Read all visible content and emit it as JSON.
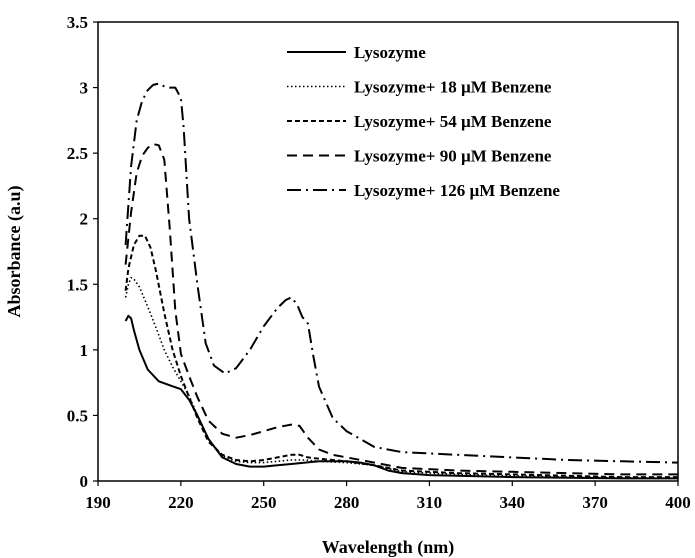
{
  "chart_data": {
    "type": "line",
    "title": "",
    "xlabel": "Wavelength (nm)",
    "ylabel": "Absorbance (a.u)",
    "xlim": [
      190,
      400
    ],
    "ylim": [
      0,
      3.5
    ],
    "x_ticks": [
      190,
      220,
      250,
      280,
      310,
      340,
      370,
      400
    ],
    "y_ticks": [
      0,
      0.5,
      1,
      1.5,
      2,
      2.5,
      3,
      3.5
    ],
    "x_tick_labels": [
      "190",
      "220",
      "250",
      "280",
      "310",
      "340",
      "370",
      "400"
    ],
    "y_tick_labels": [
      "0",
      "0.5",
      "1",
      "1.5",
      "2",
      "2.5",
      "3",
      "3.5"
    ],
    "grid": false,
    "legend_position": "top-right",
    "series": [
      {
        "name": "Lysozyme",
        "dash": "solid",
        "x": [
          200,
          201,
          202,
          203,
          205,
          208,
          212,
          216,
          220,
          223,
          226,
          230,
          235,
          240,
          245,
          250,
          255,
          260,
          265,
          270,
          275,
          280,
          285,
          290,
          295,
          300,
          310,
          320,
          340,
          360,
          380,
          400
        ],
        "y": [
          1.22,
          1.26,
          1.24,
          1.15,
          1.0,
          0.85,
          0.76,
          0.73,
          0.7,
          0.62,
          0.5,
          0.32,
          0.18,
          0.13,
          0.11,
          0.11,
          0.12,
          0.13,
          0.14,
          0.15,
          0.15,
          0.15,
          0.14,
          0.12,
          0.08,
          0.06,
          0.045,
          0.04,
          0.03,
          0.025,
          0.02,
          0.02
        ]
      },
      {
        "name": "Lysozyme+ 18 µM Benzene",
        "dash": "dotted",
        "x": [
          200,
          201,
          202,
          203,
          205,
          208,
          211,
          214,
          217,
          220,
          223,
          226,
          230,
          235,
          240,
          245,
          250,
          255,
          260,
          265,
          270,
          280,
          290,
          300,
          320,
          340,
          360,
          380,
          400
        ],
        "y": [
          1.4,
          1.5,
          1.55,
          1.54,
          1.48,
          1.33,
          1.17,
          1.0,
          0.87,
          0.76,
          0.65,
          0.5,
          0.32,
          0.19,
          0.15,
          0.14,
          0.14,
          0.15,
          0.16,
          0.16,
          0.15,
          0.14,
          0.12,
          0.07,
          0.05,
          0.04,
          0.03,
          0.025,
          0.02
        ]
      },
      {
        "name": "Lysozyme+ 54 µM Benzene",
        "dash": "short-dash",
        "x": [
          200,
          201,
          203,
          205,
          207,
          209,
          211,
          214,
          217,
          220,
          223,
          226,
          230,
          235,
          240,
          245,
          250,
          255,
          260,
          263,
          266,
          270,
          280,
          290,
          300,
          320,
          340,
          360,
          380,
          400
        ],
        "y": [
          1.45,
          1.62,
          1.8,
          1.87,
          1.87,
          1.78,
          1.6,
          1.28,
          1.0,
          0.8,
          0.64,
          0.48,
          0.3,
          0.2,
          0.16,
          0.15,
          0.16,
          0.18,
          0.2,
          0.2,
          0.18,
          0.17,
          0.15,
          0.12,
          0.08,
          0.06,
          0.05,
          0.04,
          0.03,
          0.03
        ]
      },
      {
        "name": "Lysozyme+ 90 µM Benzene",
        "dash": "long-dash",
        "x": [
          200,
          202,
          204,
          206,
          208,
          210,
          212,
          214,
          216,
          218,
          220,
          223,
          226,
          230,
          235,
          240,
          245,
          250,
          255,
          260,
          263,
          266,
          270,
          275,
          280,
          290,
          300,
          320,
          340,
          360,
          380,
          400
        ],
        "y": [
          1.65,
          2.05,
          2.35,
          2.48,
          2.54,
          2.57,
          2.56,
          2.45,
          1.92,
          1.3,
          0.97,
          0.8,
          0.64,
          0.46,
          0.36,
          0.33,
          0.35,
          0.38,
          0.41,
          0.43,
          0.42,
          0.33,
          0.24,
          0.2,
          0.18,
          0.14,
          0.1,
          0.08,
          0.07,
          0.06,
          0.05,
          0.05
        ]
      },
      {
        "name": "Lysozyme+ 126 µM Benzene",
        "dash": "dash-dot",
        "x": [
          200,
          202,
          204,
          206,
          208,
          210,
          212,
          214,
          216,
          218,
          220,
          221,
          223,
          226,
          229,
          232,
          236,
          240,
          245,
          250,
          255,
          258,
          260,
          262,
          264,
          266,
          268,
          270,
          275,
          280,
          285,
          290,
          300,
          320,
          340,
          360,
          380,
          400
        ],
        "y": [
          1.8,
          2.4,
          2.75,
          2.9,
          2.98,
          3.02,
          3.03,
          3.01,
          3.0,
          3.0,
          2.92,
          2.7,
          2.0,
          1.5,
          1.05,
          0.88,
          0.82,
          0.86,
          1.0,
          1.18,
          1.32,
          1.38,
          1.4,
          1.35,
          1.25,
          1.2,
          0.95,
          0.72,
          0.48,
          0.38,
          0.32,
          0.26,
          0.22,
          0.2,
          0.18,
          0.16,
          0.15,
          0.14
        ]
      }
    ]
  }
}
